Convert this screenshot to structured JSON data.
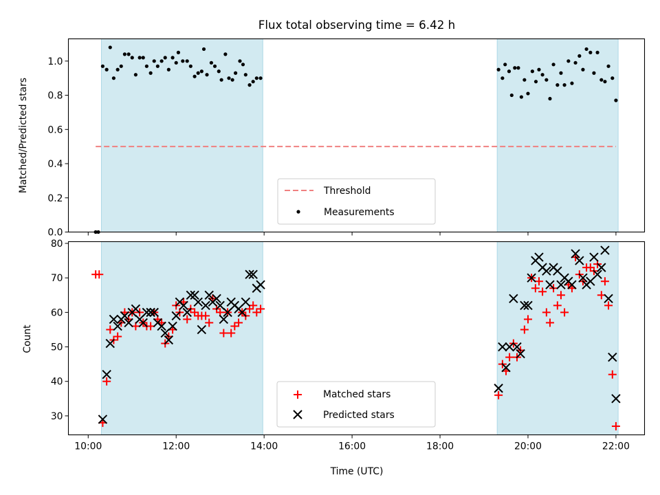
{
  "chart_data": {
    "title": "Flux total observing time = 6.42 h",
    "type": "scatter",
    "xlabel": "Time (UTC)",
    "x_unit": "hours UTC",
    "x_ticks": [
      10,
      12,
      14,
      16,
      18,
      20,
      22
    ],
    "x_tick_labels": [
      "10:00",
      "12:00",
      "14:00",
      "16:00",
      "18:00",
      "20:00",
      "22:00"
    ],
    "xlim": [
      9.55,
      22.65
    ],
    "shaded_intervals": [
      [
        10.3,
        13.97
      ],
      [
        19.3,
        22.05
      ]
    ],
    "shade_color": "#add8e6",
    "panels": [
      {
        "name": "ratio",
        "ylabel": "Matched/Predicted stars",
        "ylim": [
          0.0,
          1.13
        ],
        "y_ticks": [
          0.0,
          0.2,
          0.4,
          0.6,
          0.8,
          1.0
        ],
        "y_tick_labels": [
          "0.0",
          "0.2",
          "0.4",
          "0.6",
          "0.8",
          "1.0"
        ],
        "legend": {
          "location": "lower center",
          "entries": [
            "Threshold",
            "Measurements"
          ]
        },
        "threshold": {
          "name": "Threshold",
          "value": 0.5,
          "x_range": [
            10.17,
            22.0
          ],
          "color": "#f08080",
          "style": "dashed"
        },
        "measurements": {
          "name": "Measurements",
          "color": "#000000",
          "points": [
            [
              10.17,
              0.0
            ],
            [
              10.23,
              0.0
            ],
            [
              10.33,
              0.97
            ],
            [
              10.42,
              0.95
            ],
            [
              10.5,
              1.08
            ],
            [
              10.58,
              0.9
            ],
            [
              10.67,
              0.95
            ],
            [
              10.75,
              0.97
            ],
            [
              10.83,
              1.04
            ],
            [
              10.92,
              1.04
            ],
            [
              11.0,
              1.02
            ],
            [
              11.08,
              0.92
            ],
            [
              11.17,
              1.02
            ],
            [
              11.25,
              1.02
            ],
            [
              11.33,
              0.97
            ],
            [
              11.42,
              0.93
            ],
            [
              11.5,
              1.0
            ],
            [
              11.58,
              0.97
            ],
            [
              11.67,
              1.0
            ],
            [
              11.75,
              1.02
            ],
            [
              11.83,
              0.95
            ],
            [
              11.92,
              1.02
            ],
            [
              12.0,
              0.99
            ],
            [
              12.05,
              1.05
            ],
            [
              12.15,
              1.0
            ],
            [
              12.25,
              1.0
            ],
            [
              12.33,
              0.97
            ],
            [
              12.42,
              0.91
            ],
            [
              12.5,
              0.93
            ],
            [
              12.58,
              0.94
            ],
            [
              12.63,
              1.07
            ],
            [
              12.7,
              0.92
            ],
            [
              12.8,
              0.99
            ],
            [
              12.88,
              0.97
            ],
            [
              12.97,
              0.94
            ],
            [
              13.03,
              0.89
            ],
            [
              13.12,
              1.04
            ],
            [
              13.2,
              0.9
            ],
            [
              13.28,
              0.89
            ],
            [
              13.35,
              0.93
            ],
            [
              13.45,
              1.0
            ],
            [
              13.52,
              0.98
            ],
            [
              13.58,
              0.92
            ],
            [
              13.67,
              0.86
            ],
            [
              13.75,
              0.88
            ],
            [
              13.83,
              0.9
            ],
            [
              13.92,
              0.9
            ],
            [
              19.33,
              0.95
            ],
            [
              19.42,
              0.9
            ],
            [
              19.48,
              0.98
            ],
            [
              19.57,
              0.94
            ],
            [
              19.63,
              0.8
            ],
            [
              19.7,
              0.96
            ],
            [
              19.78,
              0.96
            ],
            [
              19.85,
              0.79
            ],
            [
              19.92,
              0.89
            ],
            [
              20.0,
              0.81
            ],
            [
              20.1,
              0.94
            ],
            [
              20.18,
              0.88
            ],
            [
              20.25,
              0.95
            ],
            [
              20.33,
              0.92
            ],
            [
              20.42,
              0.89
            ],
            [
              20.5,
              0.78
            ],
            [
              20.58,
              0.98
            ],
            [
              20.67,
              0.86
            ],
            [
              20.75,
              0.93
            ],
            [
              20.83,
              0.86
            ],
            [
              20.92,
              1.0
            ],
            [
              21.0,
              0.87
            ],
            [
              21.08,
              0.99
            ],
            [
              21.17,
              1.03
            ],
            [
              21.25,
              0.95
            ],
            [
              21.33,
              1.07
            ],
            [
              21.42,
              1.05
            ],
            [
              21.5,
              0.93
            ],
            [
              21.58,
              1.05
            ],
            [
              21.67,
              0.89
            ],
            [
              21.75,
              0.88
            ],
            [
              21.83,
              0.97
            ],
            [
              21.92,
              0.9
            ],
            [
              22.0,
              0.77
            ]
          ]
        }
      },
      {
        "name": "counts",
        "ylabel": "Count",
        "ylim": [
          24.5,
          80.5
        ],
        "y_ticks": [
          30,
          40,
          50,
          60,
          70,
          80
        ],
        "y_tick_labels": [
          "30",
          "40",
          "50",
          "60",
          "70",
          "80"
        ],
        "legend": {
          "location": "lower center",
          "entries": [
            "Matched stars",
            "Predicted stars"
          ]
        },
        "series": [
          {
            "name": "Matched stars",
            "marker": "plus",
            "color": "#ff0000",
            "points": [
              [
                10.17,
                71
              ],
              [
                10.25,
                71
              ],
              [
                10.33,
                28
              ],
              [
                10.42,
                40
              ],
              [
                10.5,
                55
              ],
              [
                10.58,
                52
              ],
              [
                10.67,
                53
              ],
              [
                10.75,
                57
              ],
              [
                10.83,
                60
              ],
              [
                10.92,
                58
              ],
              [
                11.0,
                60
              ],
              [
                11.08,
                56
              ],
              [
                11.17,
                60
              ],
              [
                11.25,
                57
              ],
              [
                11.33,
                56
              ],
              [
                11.42,
                56
              ],
              [
                11.5,
                60
              ],
              [
                11.58,
                58
              ],
              [
                11.67,
                57
              ],
              [
                11.75,
                51
              ],
              [
                11.83,
                53
              ],
              [
                11.92,
                55
              ],
              [
                12.0,
                62
              ],
              [
                12.08,
                60
              ],
              [
                12.17,
                63
              ],
              [
                12.25,
                58
              ],
              [
                12.33,
                61
              ],
              [
                12.42,
                60
              ],
              [
                12.5,
                59
              ],
              [
                12.58,
                59
              ],
              [
                12.67,
                59
              ],
              [
                12.75,
                57
              ],
              [
                12.83,
                64
              ],
              [
                12.92,
                61
              ],
              [
                13.0,
                60
              ],
              [
                13.08,
                54
              ],
              [
                13.17,
                60
              ],
              [
                13.25,
                54
              ],
              [
                13.33,
                56
              ],
              [
                13.42,
                57
              ],
              [
                13.5,
                60
              ],
              [
                13.58,
                59
              ],
              [
                13.67,
                61
              ],
              [
                13.75,
                62
              ],
              [
                13.83,
                60
              ],
              [
                13.92,
                61
              ],
              [
                19.33,
                36
              ],
              [
                19.42,
                45
              ],
              [
                19.5,
                43
              ],
              [
                19.58,
                47
              ],
              [
                19.67,
                51
              ],
              [
                19.75,
                47
              ],
              [
                19.83,
                49
              ],
              [
                19.92,
                55
              ],
              [
                20.0,
                58
              ],
              [
                20.08,
                70
              ],
              [
                20.17,
                67
              ],
              [
                20.25,
                69
              ],
              [
                20.33,
                66
              ],
              [
                20.42,
                60
              ],
              [
                20.5,
                57
              ],
              [
                20.58,
                67
              ],
              [
                20.67,
                62
              ],
              [
                20.75,
                65
              ],
              [
                20.83,
                60
              ],
              [
                20.92,
                68
              ],
              [
                21.0,
                67
              ],
              [
                21.08,
                76
              ],
              [
                21.17,
                71
              ],
              [
                21.25,
                69
              ],
              [
                21.33,
                73
              ],
              [
                21.42,
                73
              ],
              [
                21.5,
                72
              ],
              [
                21.58,
                74
              ],
              [
                21.67,
                65
              ],
              [
                21.75,
                69
              ],
              [
                21.83,
                62
              ],
              [
                21.92,
                42
              ],
              [
                22.0,
                27
              ]
            ]
          },
          {
            "name": "Predicted stars",
            "marker": "x",
            "color": "#000000",
            "points": [
              [
                10.33,
                29
              ],
              [
                10.42,
                42
              ],
              [
                10.5,
                51
              ],
              [
                10.58,
                58
              ],
              [
                10.67,
                56
              ],
              [
                10.75,
                58
              ],
              [
                10.83,
                59
              ],
              [
                10.92,
                57
              ],
              [
                11.0,
                60
              ],
              [
                11.08,
                61
              ],
              [
                11.17,
                58
              ],
              [
                11.25,
                57
              ],
              [
                11.33,
                60
              ],
              [
                11.42,
                60
              ],
              [
                11.5,
                60
              ],
              [
                11.58,
                57
              ],
              [
                11.67,
                56
              ],
              [
                11.75,
                54
              ],
              [
                11.83,
                52
              ],
              [
                11.92,
                56
              ],
              [
                12.0,
                59
              ],
              [
                12.08,
                63
              ],
              [
                12.17,
                62
              ],
              [
                12.25,
                60
              ],
              [
                12.33,
                65
              ],
              [
                12.42,
                65
              ],
              [
                12.5,
                63
              ],
              [
                12.58,
                55
              ],
              [
                12.67,
                62
              ],
              [
                12.75,
                65
              ],
              [
                12.83,
                63
              ],
              [
                12.92,
                64
              ],
              [
                13.0,
                62
              ],
              [
                13.08,
                58
              ],
              [
                13.17,
                60
              ],
              [
                13.25,
                63
              ],
              [
                13.33,
                62
              ],
              [
                13.42,
                61
              ],
              [
                13.5,
                60
              ],
              [
                13.58,
                63
              ],
              [
                13.67,
                71
              ],
              [
                13.75,
                71
              ],
              [
                13.83,
                67
              ],
              [
                13.92,
                68
              ],
              [
                19.33,
                38
              ],
              [
                19.42,
                50
              ],
              [
                19.5,
                44
              ],
              [
                19.58,
                50
              ],
              [
                19.67,
                64
              ],
              [
                19.75,
                50
              ],
              [
                19.83,
                48
              ],
              [
                19.92,
                62
              ],
              [
                20.0,
                62
              ],
              [
                20.08,
                70
              ],
              [
                20.17,
                75
              ],
              [
                20.25,
                76
              ],
              [
                20.33,
                73
              ],
              [
                20.42,
                72
              ],
              [
                20.5,
                68
              ],
              [
                20.58,
                73
              ],
              [
                20.67,
                72
              ],
              [
                20.75,
                68
              ],
              [
                20.83,
                70
              ],
              [
                20.92,
                69
              ],
              [
                21.0,
                68
              ],
              [
                21.08,
                77
              ],
              [
                21.17,
                75
              ],
              [
                21.25,
                70
              ],
              [
                21.33,
                68
              ],
              [
                21.42,
                69
              ],
              [
                21.5,
                76
              ],
              [
                21.58,
                71
              ],
              [
                21.67,
                73
              ],
              [
                21.75,
                78
              ],
              [
                21.83,
                64
              ],
              [
                21.92,
                47
              ],
              [
                22.0,
                35
              ]
            ]
          }
        ]
      }
    ]
  }
}
